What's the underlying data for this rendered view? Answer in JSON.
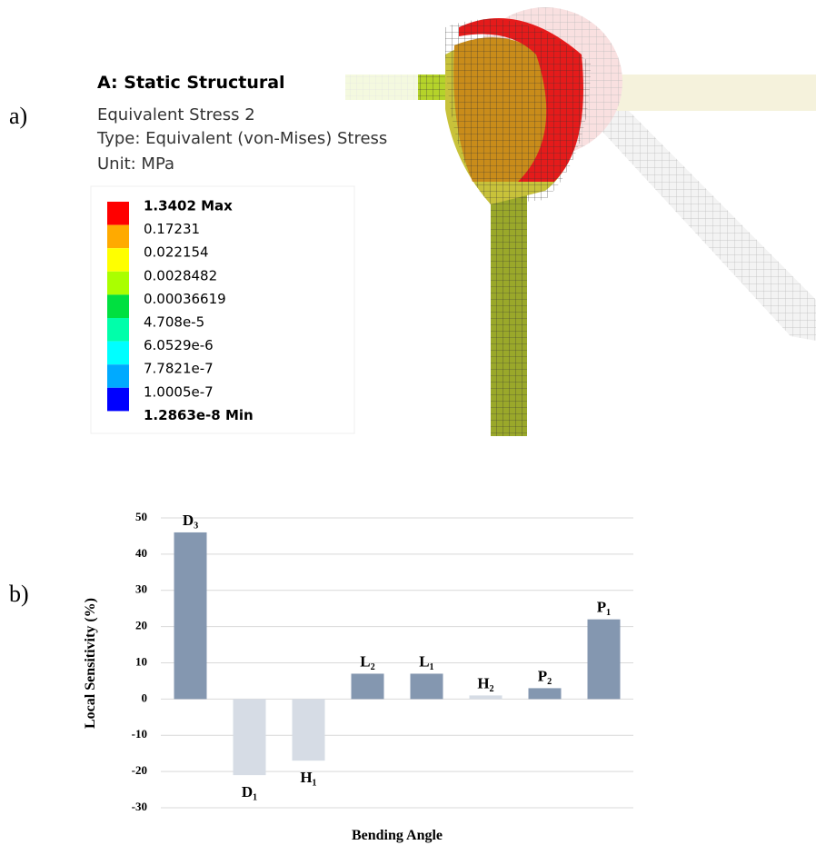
{
  "panel_labels": [
    "a)",
    "b)"
  ],
  "simulation": {
    "title": "A: Static Structural",
    "result": "Equivalent Stress 2",
    "type": "Type: Equivalent (von-Mises) Stress",
    "unit": "Unit: MPa",
    "legend_labels": [
      "1.3402 Max",
      "0.17231",
      "0.022154",
      "0.0028482",
      "0.00036619",
      "4.708e-5",
      "6.0529e-6",
      "7.7821e-7",
      "1.0005e-7",
      "1.2863e-8 Min"
    ],
    "legend_colors": [
      "#ff0000",
      "#ffaa00",
      "#ffff00",
      "#aaff00",
      "#00e040",
      "#00ffaa",
      "#00ffff",
      "#00aaff",
      "#0000ff"
    ]
  },
  "chart_data": {
    "type": "bar",
    "xlabel": "Bending Angle",
    "ylabel": "Local Sensitivity (%)",
    "categories": [
      "D₃",
      "D₁",
      "H₁",
      "L₂",
      "L₁",
      "H₂",
      "P₂",
      "P₁"
    ],
    "values": [
      46,
      -21,
      -17,
      7,
      7,
      1,
      3,
      22
    ],
    "colors": [
      "#8497b0",
      "#d6dce5",
      "#d6dce5",
      "#8497b0",
      "#8497b0",
      "#d6dce5",
      "#8497b0",
      "#8497b0"
    ],
    "ylim": [
      -30,
      50
    ],
    "yticks": [
      -30,
      -20,
      -10,
      0,
      10,
      20,
      30,
      40,
      50
    ],
    "grid": true
  }
}
